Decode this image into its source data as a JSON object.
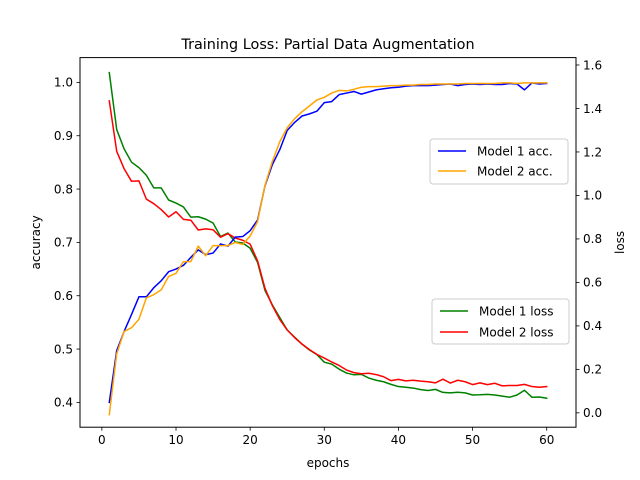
{
  "chart_data": {
    "type": "line",
    "title": "Training Loss: Partial Data Augmentation",
    "xlabel": "epochs",
    "ylabel_left": "accuracy",
    "ylabel_right": "loss",
    "xlim": [
      -2.95,
      63.95
    ],
    "ylim_left": [
      0.3535,
      1.0465
    ],
    "ylim_right": [
      -0.066,
      1.634
    ],
    "x_ticks": [
      0,
      10,
      20,
      30,
      40,
      50,
      60
    ],
    "y_left_ticks": [
      0.4,
      0.5,
      0.6,
      0.7,
      0.8,
      0.9,
      1.0
    ],
    "y_right_ticks": [
      0.0,
      0.2,
      0.4,
      0.6,
      0.8,
      1.0,
      1.2,
      1.4,
      1.6
    ],
    "grid": false,
    "legends": [
      {
        "placement": "center-right",
        "entries": [
          "Model 1 acc.",
          "Model 2 acc."
        ]
      },
      {
        "placement": "lower-right",
        "entries": [
          "Model 1 loss",
          "Model 2 loss"
        ]
      }
    ],
    "x": [
      1,
      2,
      3,
      4,
      5,
      6,
      7,
      8,
      9,
      10,
      11,
      12,
      13,
      14,
      15,
      16,
      17,
      18,
      19,
      20,
      21,
      22,
      23,
      24,
      25,
      26,
      27,
      28,
      29,
      30,
      31,
      32,
      33,
      34,
      35,
      36,
      37,
      38,
      39,
      40,
      41,
      42,
      43,
      44,
      45,
      46,
      47,
      48,
      49,
      50,
      51,
      52,
      53,
      54,
      55,
      56,
      57,
      58,
      59,
      60
    ],
    "series": [
      {
        "name": "Model 1 acc.",
        "axis": "left",
        "color": "#0000ff",
        "values": [
          0.4,
          0.497,
          0.533,
          0.565,
          0.598,
          0.598,
          0.615,
          0.628,
          0.645,
          0.65,
          0.657,
          0.672,
          0.686,
          0.677,
          0.68,
          0.697,
          0.693,
          0.71,
          0.711,
          0.722,
          0.742,
          0.806,
          0.846,
          0.874,
          0.91,
          0.925,
          0.937,
          0.941,
          0.946,
          0.962,
          0.964,
          0.977,
          0.98,
          0.983,
          0.978,
          0.982,
          0.986,
          0.988,
          0.99,
          0.991,
          0.993,
          0.994,
          0.994,
          0.994,
          0.995,
          0.996,
          0.997,
          0.994,
          0.996,
          0.997,
          0.996,
          0.997,
          0.996,
          0.996,
          0.998,
          0.997,
          0.986,
          0.999,
          0.997,
          0.998
        ]
      },
      {
        "name": "Model 2 acc.",
        "axis": "left",
        "color": "#ffa500",
        "values": [
          0.377,
          0.491,
          0.533,
          0.54,
          0.556,
          0.596,
          0.602,
          0.611,
          0.636,
          0.642,
          0.664,
          0.664,
          0.693,
          0.675,
          0.694,
          0.694,
          0.694,
          0.7,
          0.696,
          0.712,
          0.739,
          0.807,
          0.852,
          0.889,
          0.915,
          0.932,
          0.945,
          0.956,
          0.967,
          0.972,
          0.98,
          0.985,
          0.984,
          0.987,
          0.991,
          0.992,
          0.992,
          0.993,
          0.994,
          0.994,
          0.995,
          0.995,
          0.996,
          0.996,
          0.997,
          0.997,
          0.997,
          0.997,
          0.998,
          0.998,
          0.998,
          0.998,
          0.998,
          0.999,
          0.999,
          0.998,
          0.999,
          0.999,
          0.999,
          0.999
        ]
      },
      {
        "name": "Model 1 loss",
        "axis": "right",
        "color": "#008000",
        "values": [
          1.565,
          1.303,
          1.214,
          1.153,
          1.128,
          1.093,
          1.035,
          1.035,
          0.979,
          0.965,
          0.947,
          0.9,
          0.902,
          0.891,
          0.873,
          0.811,
          0.827,
          0.786,
          0.781,
          0.757,
          0.692,
          0.563,
          0.496,
          0.438,
          0.381,
          0.348,
          0.316,
          0.289,
          0.268,
          0.233,
          0.224,
          0.201,
          0.183,
          0.175,
          0.177,
          0.16,
          0.15,
          0.143,
          0.131,
          0.121,
          0.118,
          0.114,
          0.107,
          0.103,
          0.108,
          0.094,
          0.092,
          0.095,
          0.092,
          0.082,
          0.083,
          0.085,
          0.082,
          0.077,
          0.072,
          0.082,
          0.104,
          0.072,
          0.073,
          0.067
        ]
      },
      {
        "name": "Model 2 loss",
        "axis": "right",
        "color": "#ff0000",
        "values": [
          1.435,
          1.203,
          1.123,
          1.065,
          1.067,
          0.983,
          0.962,
          0.935,
          0.901,
          0.925,
          0.89,
          0.886,
          0.841,
          0.846,
          0.842,
          0.808,
          0.824,
          0.804,
          0.794,
          0.776,
          0.699,
          0.573,
          0.493,
          0.429,
          0.381,
          0.346,
          0.316,
          0.291,
          0.269,
          0.252,
          0.234,
          0.218,
          0.197,
          0.185,
          0.18,
          0.182,
          0.176,
          0.166,
          0.148,
          0.154,
          0.147,
          0.15,
          0.146,
          0.143,
          0.138,
          0.155,
          0.137,
          0.15,
          0.143,
          0.13,
          0.138,
          0.13,
          0.136,
          0.124,
          0.126,
          0.126,
          0.131,
          0.121,
          0.118,
          0.121
        ]
      }
    ]
  }
}
